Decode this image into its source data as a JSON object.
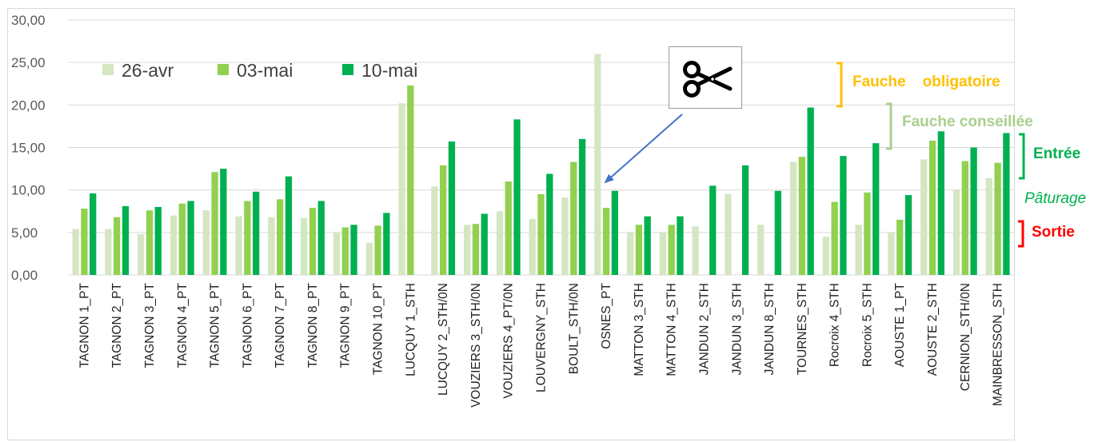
{
  "chart_data": {
    "type": "bar",
    "title": "",
    "xlabel": "",
    "ylabel": "",
    "ylim": [
      0,
      30
    ],
    "yticks": [
      "0,00",
      "5,00",
      "10,00",
      "15,00",
      "20,00",
      "25,00",
      "30,00"
    ],
    "ytick_values": [
      0,
      5,
      10,
      15,
      20,
      25,
      30
    ],
    "grid": true,
    "legend_position": "top-left",
    "categories": [
      "TAGNON 1_PT",
      "TAGNON 2_PT",
      "TAGNON 3_PT",
      "TAGNON 4_PT",
      "TAGNON 5_PT",
      "TAGNON 6_PT",
      "TAGNON 7_PT",
      "TAGNON 8_PT",
      "TAGNON 9_PT",
      "TAGNON 10_PT",
      "LUCQUY 1_STH",
      "LUCQUY 2_STH/0N",
      "VOUZIERS 3_STH/0N",
      "VOUZIERS 4_PT/0N",
      "LOUVERGNY_STH",
      "BOULT_STH/0N",
      "OSNES_PT",
      "MATTON 3_STH",
      "MATTON 4_STH",
      "JANDUN 2_STH",
      "JANDUN 3_STH",
      "JANDUN 8_STH",
      "TOURNES_STH",
      "Rocroix 4_STH",
      "Rocroix 5_STH",
      "AOUSTE 1_PT",
      "AOUSTE 2_STH",
      "CERNION_STH/0N",
      "MAINBRESSON_STH"
    ],
    "series": [
      {
        "name": "26-avr",
        "color": "#d4e6c2",
        "values": [
          5.4,
          5.4,
          4.8,
          7.0,
          7.6,
          6.9,
          6.8,
          6.7,
          5.0,
          3.8,
          20.2,
          10.4,
          5.9,
          7.5,
          6.6,
          9.1,
          26.0,
          5.0,
          5.0,
          5.7,
          9.5,
          5.9,
          13.3,
          4.5,
          5.9,
          5.0,
          13.6,
          10.0,
          11.4
        ]
      },
      {
        "name": "03-mai",
        "color": "#92d050",
        "values": [
          7.8,
          6.8,
          7.6,
          8.4,
          12.1,
          8.7,
          8.9,
          7.9,
          5.6,
          5.8,
          22.3,
          12.9,
          6.0,
          11.0,
          9.5,
          13.3,
          7.9,
          5.9,
          5.9,
          null,
          null,
          null,
          13.9,
          8.6,
          9.7,
          6.5,
          15.8,
          13.4,
          13.2
        ]
      },
      {
        "name": "10-mai",
        "color": "#00b050",
        "values": [
          9.6,
          8.1,
          8.0,
          8.7,
          12.5,
          9.8,
          11.6,
          8.7,
          5.9,
          7.3,
          null,
          15.7,
          7.2,
          18.3,
          11.9,
          16.0,
          9.9,
          6.9,
          6.9,
          10.5,
          12.9,
          9.9,
          19.7,
          14.0,
          15.5,
          9.4,
          16.9,
          15.0,
          16.7
        ]
      }
    ],
    "annotations": [
      {
        "text": "Fauche    obligatoire",
        "color": "#ffc000",
        "range": [
          20,
          25
        ]
      },
      {
        "text": "Fauche conseillée",
        "color": "#a9d08e",
        "range": [
          15,
          20
        ]
      },
      {
        "text": "Entrée",
        "color": "#00b050",
        "range": [
          11.5,
          16.5
        ]
      },
      {
        "text": "Pâturage",
        "color": "#00b050"
      },
      {
        "text": "Sortie",
        "color": "#ff0000",
        "range": [
          3,
          6
        ]
      }
    ]
  },
  "scissors_icon": "scissors-icon",
  "scissors_target": "OSNES_PT"
}
